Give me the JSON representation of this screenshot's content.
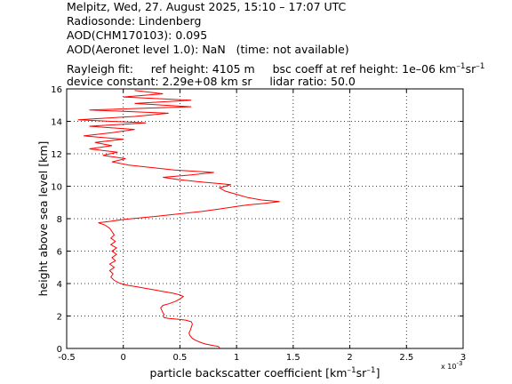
{
  "header": {
    "line1": "Melpitz, Wed, 27. August 2025, 15:10 – 17:07 UTC",
    "line2": "Radiosonde: Lindenberg",
    "line3": "AOD(CHM170103): 0.095",
    "line4": "AOD(Aeronet level 1.0): NaN   (time: not available)",
    "line5_a": "Rayleigh fit:     ref height: 4105 m     bsc coeff at ref height: 1e–06 km",
    "line5_sup1": "–1",
    "line5_b": "sr",
    "line5_sup2": "–1",
    "line6": "device constant: 2.29e+08 km sr     lidar ratio: 50.0"
  },
  "chart_data": {
    "type": "line",
    "xlabel_a": "particle backscatter coefficient [km",
    "xlabel_sup1": "–1",
    "xlabel_b": "sr",
    "xlabel_sup2": "–1",
    "xlabel_c": "]",
    "ylabel": "height above sea level [km]",
    "x_multiplier": "x 10",
    "x_multiplier_exp": "-3",
    "xlim": [
      -0.5,
      3
    ],
    "ylim": [
      0,
      16
    ],
    "xticks": [
      "-0.5",
      "0",
      "0.5",
      "1",
      "1.5",
      "2",
      "2.5",
      "3"
    ],
    "xtick_values": [
      -0.5,
      0,
      0.5,
      1,
      1.5,
      2,
      2.5,
      3
    ],
    "yticks": [
      "0",
      "2",
      "4",
      "6",
      "8",
      "10",
      "12",
      "14",
      "16"
    ],
    "ytick_values": [
      0,
      2,
      4,
      6,
      8,
      10,
      12,
      14,
      16
    ],
    "grid": true,
    "series": [
      {
        "color": "#ff0000",
        "points": [
          [
            0.85,
            0.02
          ],
          [
            0.84,
            0.12
          ],
          [
            0.78,
            0.2
          ],
          [
            0.72,
            0.28
          ],
          [
            0.68,
            0.38
          ],
          [
            0.64,
            0.5
          ],
          [
            0.61,
            0.62
          ],
          [
            0.59,
            0.78
          ],
          [
            0.58,
            0.95
          ],
          [
            0.59,
            1.1
          ],
          [
            0.6,
            1.3
          ],
          [
            0.61,
            1.5
          ],
          [
            0.6,
            1.65
          ],
          [
            0.55,
            1.75
          ],
          [
            0.48,
            1.8
          ],
          [
            0.4,
            1.85
          ],
          [
            0.36,
            1.9
          ],
          [
            0.35,
            2.0
          ],
          [
            0.36,
            2.1
          ],
          [
            0.35,
            2.2
          ],
          [
            0.34,
            2.35
          ],
          [
            0.33,
            2.5
          ],
          [
            0.35,
            2.65
          ],
          [
            0.4,
            2.75
          ],
          [
            0.46,
            2.9
          ],
          [
            0.5,
            3.05
          ],
          [
            0.53,
            3.2
          ],
          [
            0.5,
            3.3
          ],
          [
            0.44,
            3.4
          ],
          [
            0.36,
            3.5
          ],
          [
            0.28,
            3.6
          ],
          [
            0.2,
            3.7
          ],
          [
            0.12,
            3.8
          ],
          [
            0.05,
            3.88
          ],
          [
            0.0,
            3.95
          ],
          [
            -0.04,
            4.05
          ],
          [
            -0.08,
            4.2
          ],
          [
            -0.11,
            4.4
          ],
          [
            -0.09,
            4.6
          ],
          [
            -0.12,
            4.8
          ],
          [
            -0.08,
            5.0
          ],
          [
            -0.12,
            5.2
          ],
          [
            -0.07,
            5.4
          ],
          [
            -0.1,
            5.6
          ],
          [
            -0.06,
            5.8
          ],
          [
            -0.1,
            6.0
          ],
          [
            -0.06,
            6.2
          ],
          [
            -0.11,
            6.4
          ],
          [
            -0.07,
            6.6
          ],
          [
            -0.11,
            6.8
          ],
          [
            -0.08,
            7.0
          ],
          [
            -0.1,
            7.2
          ],
          [
            -0.12,
            7.4
          ],
          [
            -0.16,
            7.6
          ],
          [
            -0.22,
            7.75
          ],
          [
            -0.1,
            7.85
          ],
          [
            0.0,
            7.95
          ],
          [
            0.15,
            8.05
          ],
          [
            0.3,
            8.15
          ],
          [
            0.5,
            8.3
          ],
          [
            0.7,
            8.45
          ],
          [
            0.85,
            8.6
          ],
          [
            1.0,
            8.75
          ],
          [
            1.1,
            8.85
          ],
          [
            1.25,
            8.95
          ],
          [
            1.38,
            9.05
          ],
          [
            1.22,
            9.15
          ],
          [
            1.1,
            9.3
          ],
          [
            1.0,
            9.5
          ],
          [
            0.9,
            9.7
          ],
          [
            0.85,
            9.9
          ],
          [
            0.95,
            10.1
          ],
          [
            0.7,
            10.25
          ],
          [
            0.5,
            10.4
          ],
          [
            0.35,
            10.55
          ],
          [
            0.6,
            10.7
          ],
          [
            0.8,
            10.85
          ],
          [
            0.45,
            11.0
          ],
          [
            0.25,
            11.15
          ],
          [
            0.05,
            11.3
          ],
          [
            -0.1,
            11.5
          ],
          [
            0.02,
            11.7
          ],
          [
            -0.18,
            11.9
          ],
          [
            -0.05,
            12.1
          ],
          [
            -0.3,
            12.3
          ],
          [
            -0.1,
            12.5
          ],
          [
            -0.25,
            12.7
          ],
          [
            0.0,
            12.9
          ],
          [
            -0.35,
            13.1
          ],
          [
            -0.1,
            13.3
          ],
          [
            0.1,
            13.5
          ],
          [
            -0.3,
            13.7
          ],
          [
            0.2,
            13.9
          ],
          [
            -0.4,
            14.1
          ],
          [
            0.1,
            14.3
          ],
          [
            0.4,
            14.5
          ],
          [
            -0.3,
            14.7
          ],
          [
            0.6,
            14.9
          ],
          [
            0.1,
            15.1
          ],
          [
            0.6,
            15.3
          ],
          [
            0.0,
            15.5
          ],
          [
            0.35,
            15.7
          ],
          [
            0.1,
            15.9
          ]
        ]
      }
    ]
  }
}
